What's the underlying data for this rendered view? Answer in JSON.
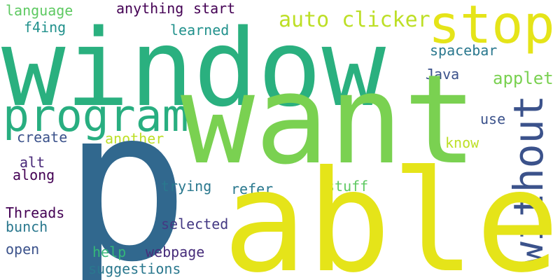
{
  "words": [
    {
      "text": "language",
      "color": "#5ec962"
    },
    {
      "text": "anything",
      "color": "#440154"
    },
    {
      "text": "start",
      "color": "#440154"
    },
    {
      "text": "f4ing",
      "color": "#21918c"
    },
    {
      "text": "learned",
      "color": "#21918c"
    },
    {
      "text": "auto clicker",
      "color": "#bddf26"
    },
    {
      "text": "stop",
      "color": "#e5e419"
    },
    {
      "text": "window",
      "color": "#2ab07f"
    },
    {
      "text": "spacebar",
      "color": "#2a788e"
    },
    {
      "text": "Java",
      "color": "#3b528b"
    },
    {
      "text": "applet",
      "color": "#7ad151"
    },
    {
      "text": "program",
      "color": "#28ae80"
    },
    {
      "text": "want",
      "color": "#7ad151"
    },
    {
      "text": "without",
      "color": "#3b528b"
    },
    {
      "text": "create",
      "color": "#3b528b"
    },
    {
      "text": "another",
      "color": "#bddf26"
    },
    {
      "text": "use",
      "color": "#3b528b"
    },
    {
      "text": "know",
      "color": "#bddf26"
    },
    {
      "text": "alt",
      "color": "#482878"
    },
    {
      "text": "along",
      "color": "#440154"
    },
    {
      "text": "p",
      "color": "#31688e"
    },
    {
      "text": "trying",
      "color": "#2a788e"
    },
    {
      "text": "refer",
      "color": "#2a788e"
    },
    {
      "text": "stuff",
      "color": "#5ec962"
    },
    {
      "text": "able",
      "color": "#e5e419"
    },
    {
      "text": "Threads",
      "color": "#440154"
    },
    {
      "text": "bunch",
      "color": "#2a788e"
    },
    {
      "text": "selected",
      "color": "#443983"
    },
    {
      "text": "open",
      "color": "#3b528b"
    },
    {
      "text": "help",
      "color": "#35b779"
    },
    {
      "text": "webpage",
      "color": "#472d7b"
    },
    {
      "text": "suggestions",
      "color": "#2a788e"
    }
  ]
}
